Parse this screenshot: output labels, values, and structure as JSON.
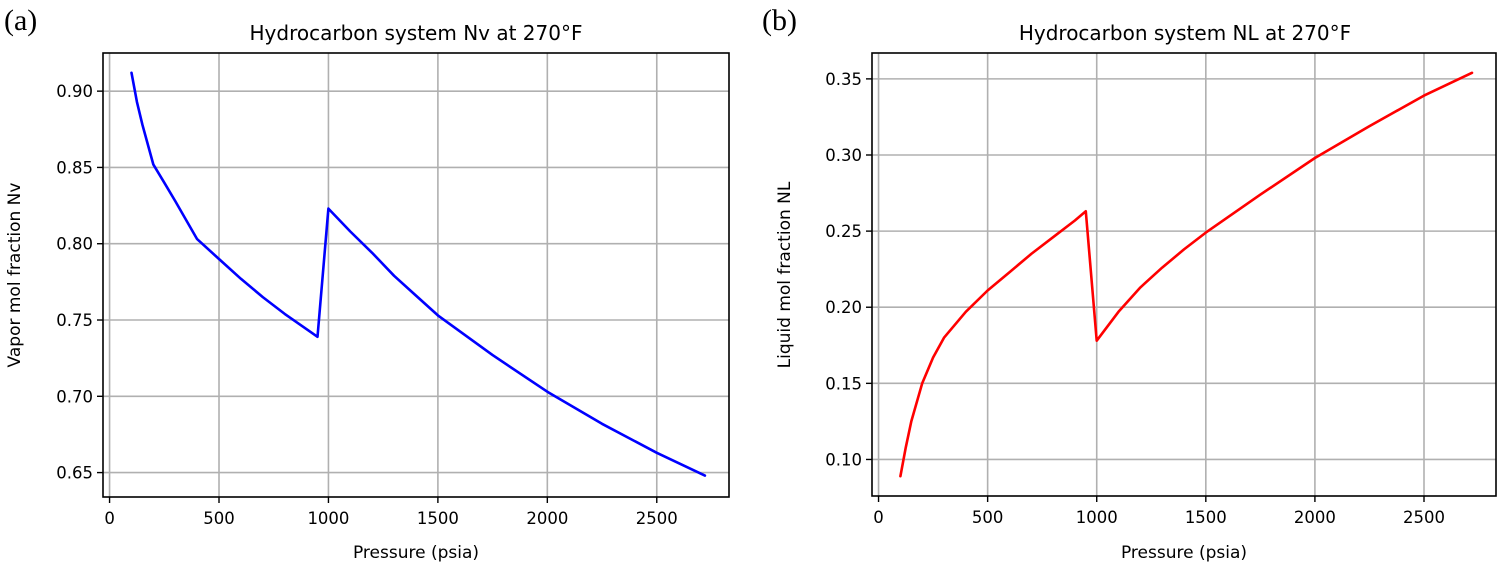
{
  "chart_data": [
    {
      "type": "line",
      "panel_label": "(a)",
      "title": "Hydrocarbon system Nv at 270°F",
      "xlabel": "Pressure (psia)",
      "ylabel": "Vapor mol fraction Nv",
      "xlim": [
        -30,
        2830
      ],
      "ylim": [
        0.634,
        0.925
      ],
      "xticks": [
        0,
        500,
        1000,
        1500,
        2000,
        2500
      ],
      "xtick_labels": [
        "0",
        "500",
        "1000",
        "1500",
        "2000",
        "2500"
      ],
      "yticks": [
        0.65,
        0.7,
        0.75,
        0.8,
        0.85,
        0.9
      ],
      "ytick_labels": [
        "0.65",
        "0.70",
        "0.75",
        "0.80",
        "0.85",
        "0.90"
      ],
      "grid": true,
      "legend": "none",
      "series": [
        {
          "name": "Nv",
          "color": "#0000ff",
          "x": [
            100,
            125,
            150,
            200,
            250,
            300,
            400,
            500,
            600,
            700,
            800,
            900,
            950,
            1000,
            1100,
            1200,
            1300,
            1400,
            1500,
            1750,
            2000,
            2250,
            2500,
            2720
          ],
          "y": [
            0.912,
            0.893,
            0.878,
            0.852,
            0.84,
            0.828,
            0.803,
            0.79,
            0.777,
            0.765,
            0.754,
            0.744,
            0.739,
            0.823,
            0.808,
            0.794,
            0.779,
            0.766,
            0.753,
            0.727,
            0.703,
            0.682,
            0.663,
            0.648
          ]
        }
      ]
    },
    {
      "type": "line",
      "panel_label": "(b)",
      "title": "Hydrocarbon system NL at 270°F",
      "xlabel": "Pressure (psia)",
      "ylabel": "Liquid mol fraction NL",
      "xlim": [
        -30,
        2830
      ],
      "ylim": [
        0.076,
        0.367
      ],
      "xticks": [
        0,
        500,
        1000,
        1500,
        2000,
        2500
      ],
      "xtick_labels": [
        "0",
        "500",
        "1000",
        "1500",
        "2000",
        "2500"
      ],
      "yticks": [
        0.1,
        0.15,
        0.2,
        0.25,
        0.3,
        0.35
      ],
      "ytick_labels": [
        "0.10",
        "0.15",
        "0.20",
        "0.25",
        "0.30",
        "0.35"
      ],
      "grid": true,
      "legend": "none",
      "series": [
        {
          "name": "NL",
          "color": "#ff0000",
          "x": [
            100,
            125,
            150,
            200,
            250,
            300,
            400,
            500,
            600,
            700,
            800,
            900,
            950,
            1000,
            1100,
            1200,
            1300,
            1400,
            1500,
            1750,
            2000,
            2250,
            2500,
            2720
          ],
          "y": [
            0.089,
            0.108,
            0.125,
            0.15,
            0.167,
            0.18,
            0.197,
            0.211,
            0.223,
            0.235,
            0.246,
            0.257,
            0.263,
            0.178,
            0.197,
            0.213,
            0.226,
            0.238,
            0.249,
            0.274,
            0.298,
            0.319,
            0.339,
            0.354
          ]
        }
      ]
    }
  ]
}
